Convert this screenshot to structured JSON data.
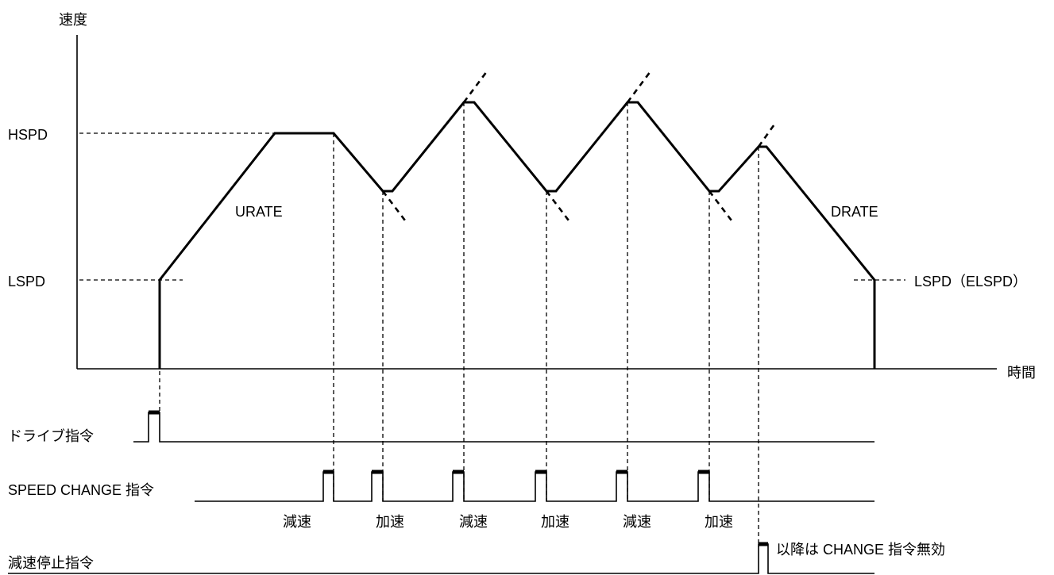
{
  "axes": {
    "y_label": "速度",
    "x_label": "時間"
  },
  "speed_levels": {
    "hspd": "HSPD",
    "lspd": "LSPD",
    "lspd_end": "LSPD（ELSPD）"
  },
  "rates": {
    "urate": "URATE",
    "drate": "DRATE"
  },
  "signals": {
    "drive": "ドライブ指令",
    "speed_change": "SPEED CHANGE 指令",
    "decel_stop": "減速停止指令"
  },
  "change_labels": [
    "減速",
    "加速",
    "減速",
    "加速",
    "減速",
    "加速"
  ],
  "note": "以降は CHANGE 指令無効"
}
